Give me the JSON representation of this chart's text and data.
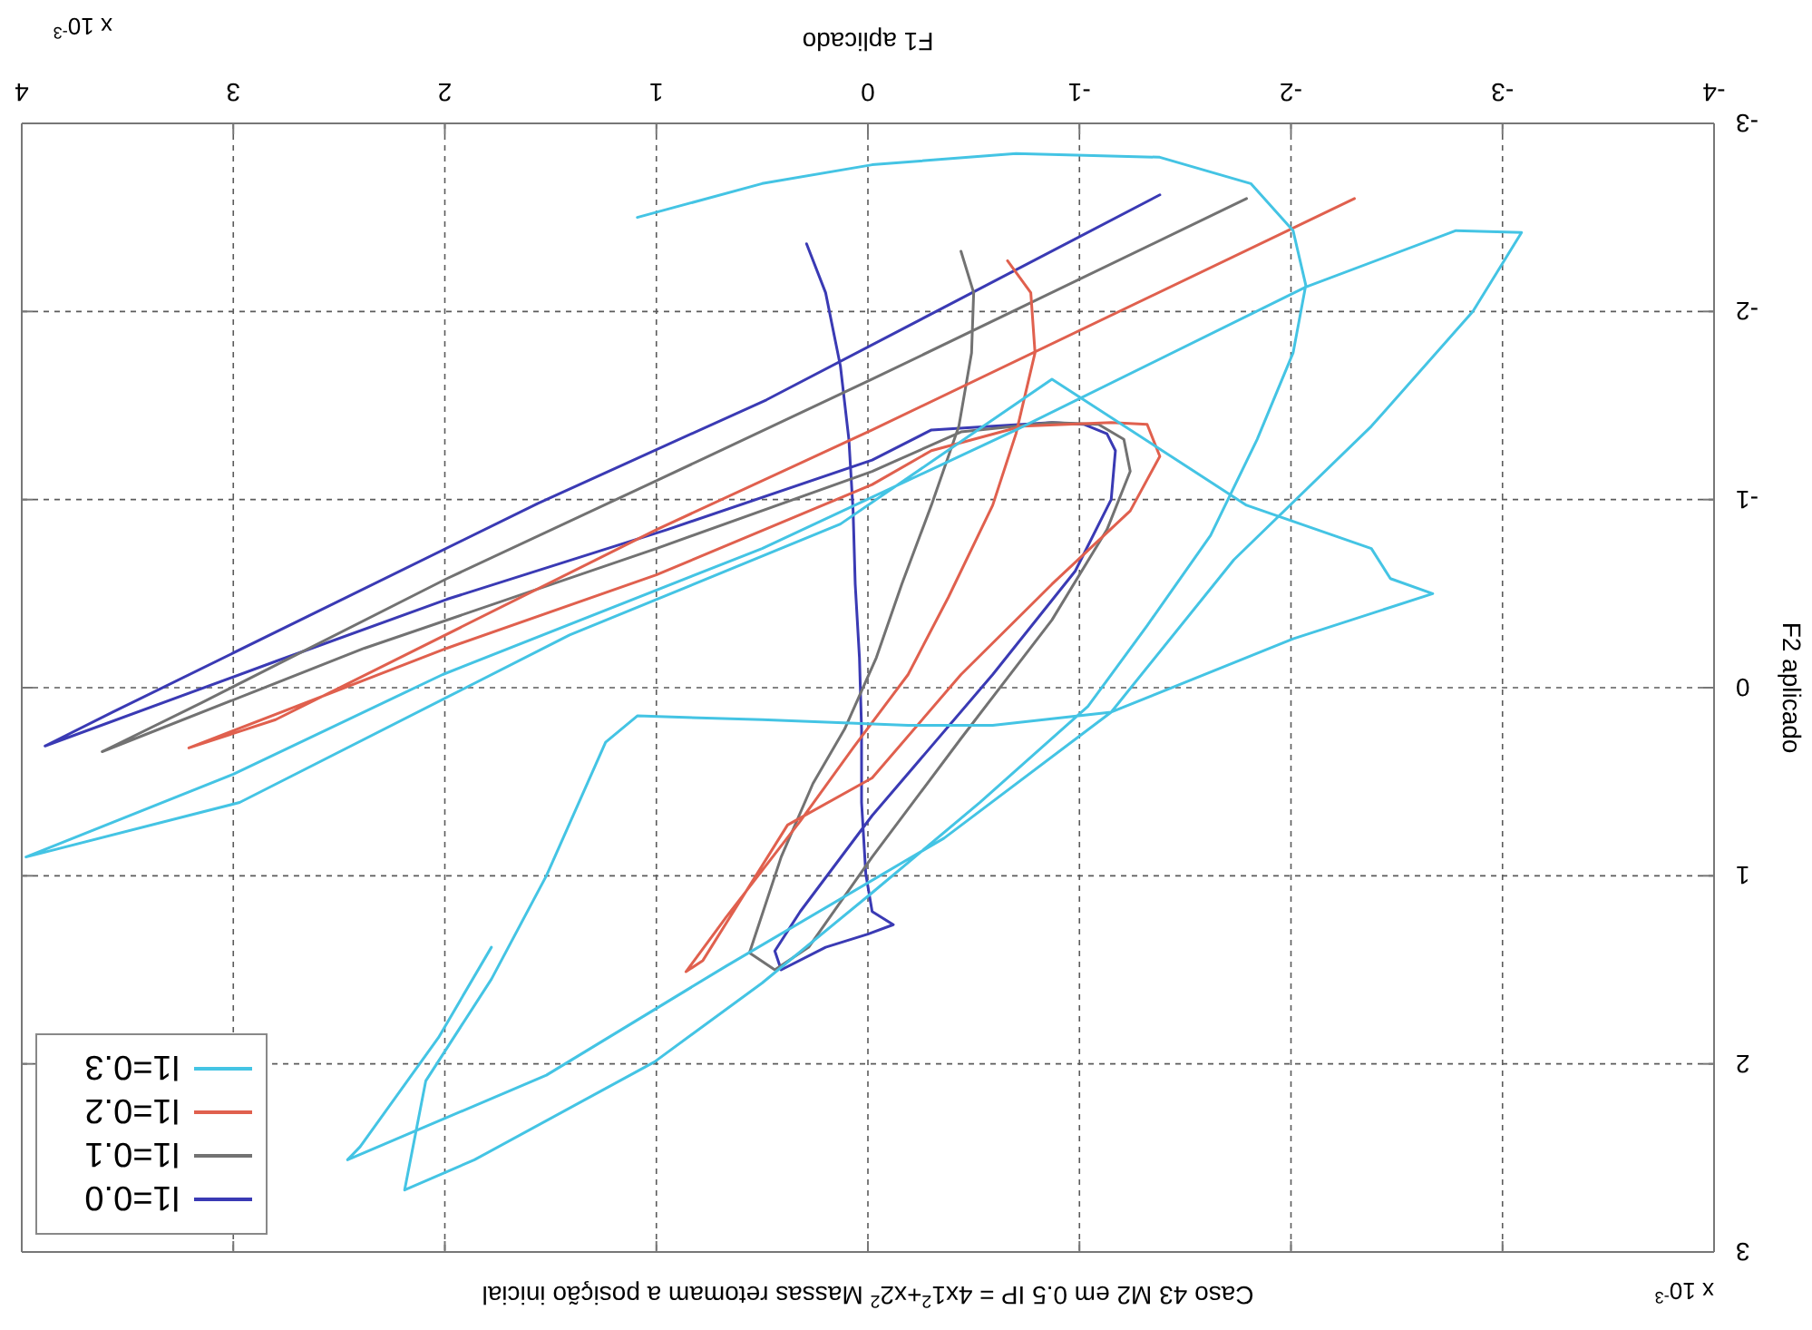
{
  "chart_data": {
    "type": "line",
    "title": "Caso 43 M2 em 0.5 IP = 4x1$^{2}$+x2$^{2}$ Massas retomam a posição inicial",
    "xlabel": "F1 aplicado",
    "ylabel": "F2 aplicado",
    "annotations": [
      "x 10$^{-3}$",
      "x 10$^{-3}$"
    ],
    "xlim": [
      4,
      -4
    ],
    "xticks": [
      4,
      3,
      2,
      1,
      0,
      -1,
      -2,
      -3,
      -4
    ],
    "ylim": [
      3,
      -3
    ],
    "yticks": [
      3,
      2,
      1,
      0,
      -1,
      -2,
      -3
    ],
    "grid": true,
    "legend": "bottom left",
    "marker": "none",
    "line_style": "solid",
    "series": [
      {
        "name": "l1=0.0",
        "color": "#3a3ab4",
        "x": [
          0.29,
          0.2,
          0.13,
          0.09,
          0.07,
          0.06,
          0.04,
          0.03,
          0.03,
          0.01,
          -0.02,
          -0.12,
          0.0,
          0.2,
          0.41,
          0.44,
          0.32,
          -0.02,
          -0.59,
          -0.98,
          -1.15,
          -1.17,
          -1.13,
          -1.02,
          -0.87,
          -0.59,
          -0.3,
          -0.02,
          0.95,
          1.99,
          2.8,
          3.89,
          3.57,
          1.56,
          0.48,
          -1.38
        ],
        "values": [
          -2.36,
          -2.1,
          -1.71,
          -1.32,
          -0.94,
          -0.55,
          -0.16,
          0.22,
          0.61,
          0.99,
          1.19,
          1.26,
          1.31,
          1.38,
          1.5,
          1.4,
          1.19,
          0.68,
          -0.07,
          -0.62,
          -1.0,
          -1.26,
          -1.35,
          -1.4,
          -1.41,
          -1.39,
          -1.37,
          -1.21,
          -0.84,
          -0.47,
          -0.14,
          0.31,
          0.13,
          -0.98,
          -1.53,
          -2.62
        ]
      },
      {
        "name": "l1=0.1",
        "color": "#727272",
        "x": [
          -0.44,
          -0.5,
          -0.49,
          -0.43,
          -0.3,
          -0.16,
          -0.04,
          0.11,
          0.26,
          0.41,
          0.56,
          0.44,
          0.28,
          -0.02,
          -0.44,
          -0.87,
          -1.13,
          -1.24,
          -1.21,
          -1.09,
          -0.87,
          -0.44,
          -0.02,
          1.0,
          2.38,
          3.62,
          3.15,
          1.99,
          1.0,
          -0.02,
          -1.79
        ],
        "values": [
          -2.32,
          -2.1,
          -1.78,
          -1.39,
          -0.97,
          -0.55,
          -0.16,
          0.22,
          0.51,
          0.9,
          1.41,
          1.5,
          1.38,
          0.9,
          0.27,
          -0.36,
          -0.84,
          -1.15,
          -1.32,
          -1.4,
          -1.41,
          -1.36,
          -1.15,
          -0.74,
          -0.21,
          0.34,
          0.08,
          -0.58,
          -1.1,
          -1.64,
          -2.6
        ]
      },
      {
        "name": "l1=0.2",
        "color": "#e0604e",
        "x": [
          -0.66,
          -0.77,
          -0.79,
          -0.7,
          -0.59,
          -0.38,
          -0.19,
          0.07,
          0.32,
          0.67,
          0.86,
          0.78,
          0.38,
          -0.02,
          -0.44,
          -0.87,
          -1.24,
          -1.38,
          -1.32,
          -1.15,
          -0.73,
          -0.3,
          -0.02,
          1.0,
          1.99,
          3.21,
          2.8,
          1.0,
          -0.02,
          -2.3
        ],
        "values": [
          -2.27,
          -2.1,
          -1.78,
          -1.35,
          -0.97,
          -0.48,
          -0.07,
          0.32,
          0.71,
          1.22,
          1.51,
          1.45,
          0.73,
          0.48,
          -0.07,
          -0.55,
          -0.94,
          -1.23,
          -1.4,
          -1.41,
          -1.39,
          -1.26,
          -1.08,
          -0.6,
          -0.21,
          0.32,
          0.17,
          -0.84,
          -1.37,
          -2.6
        ]
      },
      {
        "name": "l1=0.3",
        "color": "#44c4e4",
        "x": [
          1.09,
          0.5,
          -0.02,
          -0.7,
          -1.38,
          -1.81,
          -2.01,
          -2.07,
          -2.01,
          -1.84,
          -1.62,
          -1.32,
          -1.04,
          -0.53,
          -0.02,
          0.5,
          1.01,
          1.86,
          2.19,
          2.09,
          1.78,
          1.52,
          1.24,
          1.09,
          0.5,
          -0.19,
          -0.59,
          -1.15,
          -2.01,
          -2.67,
          -2.47,
          -2.38,
          -1.79,
          -0.87,
          0.13,
          1.41,
          2.97,
          3.98,
          3.0,
          2.01,
          0.5,
          -0.7,
          -2.07,
          -2.78,
          -3.09,
          -2.86,
          -2.38,
          -1.73,
          -1.15,
          -0.36,
          0.67,
          1.52,
          2.46,
          2.4,
          2.03,
          1.78
        ],
        "values": [
          -2.5,
          -2.68,
          -2.78,
          -2.84,
          -2.82,
          -2.68,
          -2.43,
          -2.14,
          -1.78,
          -1.32,
          -0.81,
          -0.33,
          0.1,
          0.61,
          1.09,
          1.57,
          1.99,
          2.51,
          2.67,
          2.09,
          1.55,
          1.0,
          0.29,
          0.15,
          0.17,
          0.2,
          0.2,
          0.13,
          -0.26,
          -0.5,
          -0.58,
          -0.74,
          -0.97,
          -1.64,
          -0.87,
          -0.28,
          0.61,
          0.9,
          0.46,
          -0.07,
          -0.74,
          -1.37,
          -2.13,
          -2.43,
          -2.42,
          -2.0,
          -1.39,
          -0.68,
          0.13,
          0.8,
          1.48,
          2.06,
          2.51,
          2.44,
          1.86,
          1.38
        ]
      }
    ]
  }
}
